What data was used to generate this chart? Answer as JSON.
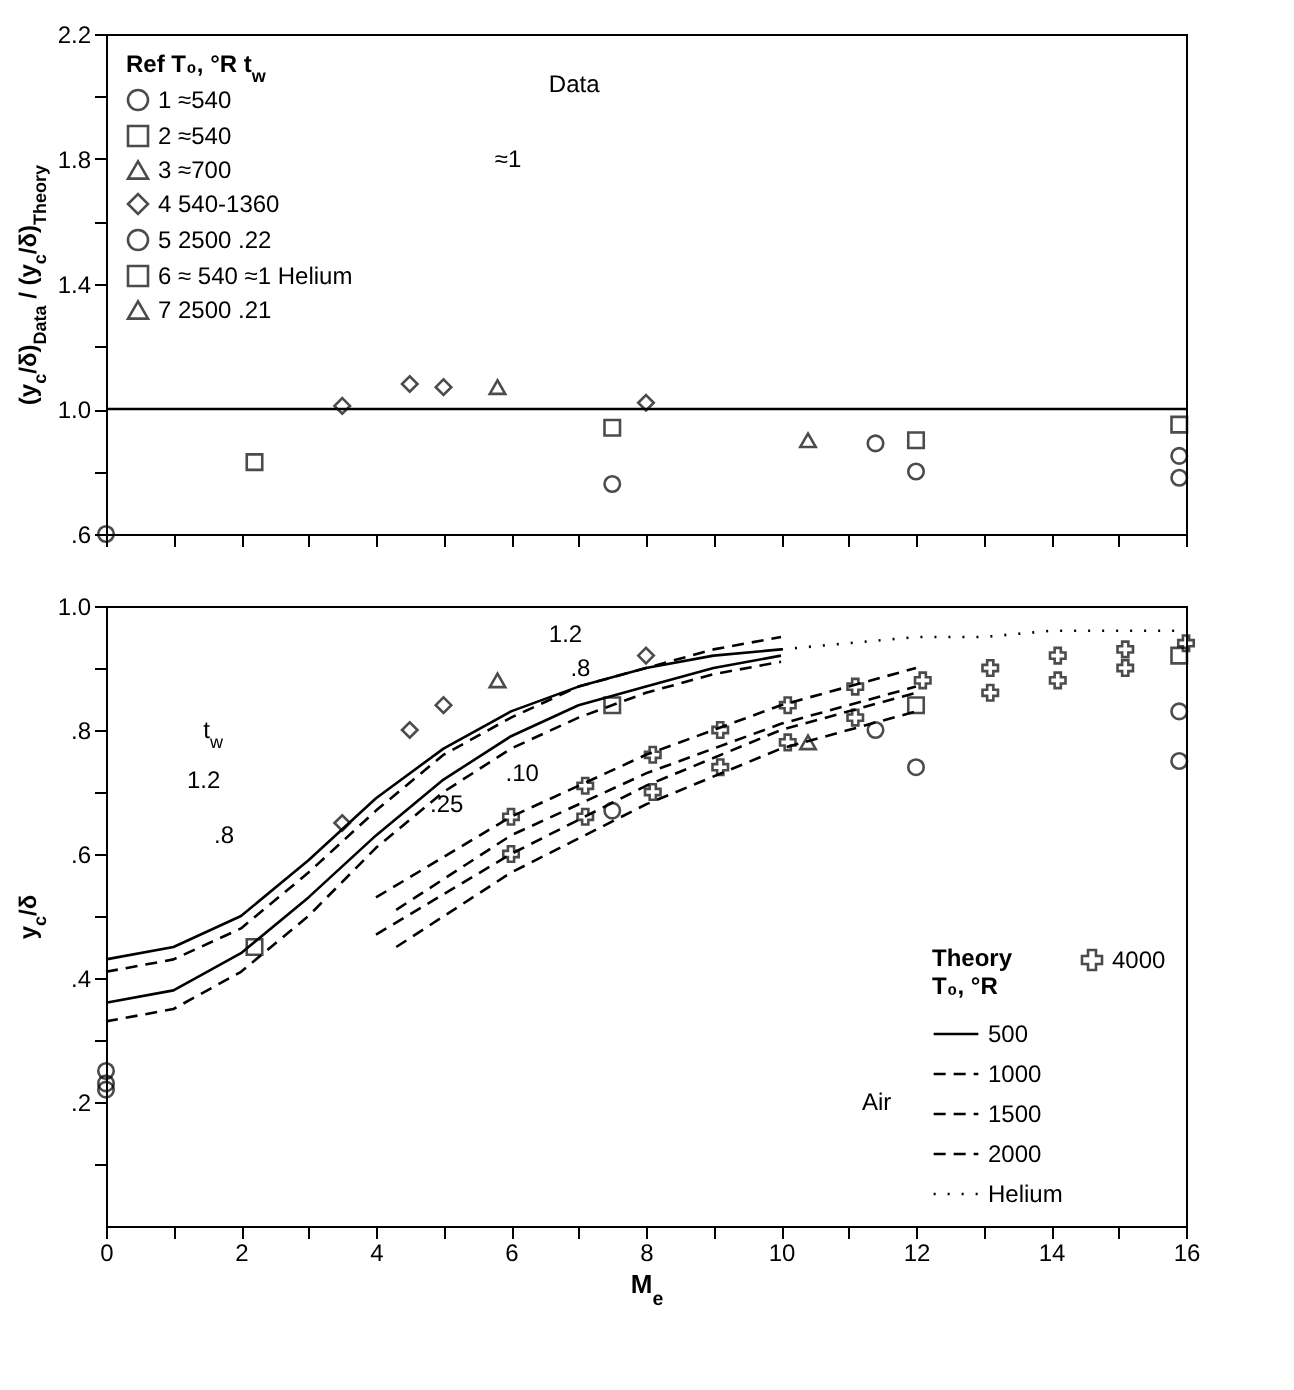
{
  "chart_data": [
    {
      "type": "scatter",
      "ylabel": "(y$_{c}$/δ)$_{Data}$ / (y$_{c}$/δ)$_{Theory}$",
      "legend_title": "Ref   T₀, °R   t$_{w}$",
      "legend": "top left",
      "tick_labels": "y",
      "xlim": [
        0,
        16
      ],
      "xticks": [
        0,
        {
          "value": 1,
          "label": null
        },
        2,
        {
          "value": 3,
          "label": null
        },
        4,
        {
          "value": 5,
          "label": null
        },
        6,
        {
          "value": 7,
          "label": null
        },
        8,
        {
          "value": 9,
          "label": null
        },
        10,
        {
          "value": 11,
          "label": null
        },
        12,
        {
          "value": 13,
          "label": null
        },
        14,
        {
          "value": 15,
          "label": null
        },
        16
      ],
      "ylim": [
        0.6,
        2.2
      ],
      "yticks": [
        {
          "value": 0.6,
          "label": ".6"
        },
        {
          "value": 0.8,
          "label": null
        },
        {
          "value": 1,
          "label": "1.0"
        },
        {
          "value": 1.2,
          "label": null
        },
        1.4,
        {
          "value": 1.6,
          "label": null
        },
        1.8,
        {
          "value": 2,
          "label": null
        },
        2.2
      ],
      "annotations": [
        "Data",
        "≈1"
      ],
      "ref_lines": [
        {
          "axis": "y",
          "value": 1,
          "color": "#000000",
          "line_style": "solid"
        }
      ],
      "series": [
        {
          "name": "1   ≈540",
          "color": "#000000",
          "marker": "circle",
          "x": [
            0
          ],
          "values": [
            0.6
          ]
        },
        {
          "name": "2   ≈540",
          "color": "#000000",
          "marker": "square",
          "x": [
            2.2
          ],
          "values": [
            0.83
          ]
        },
        {
          "name": "3   ≈700",
          "color": "#000000",
          "marker": "triangle",
          "x": [
            5.8
          ],
          "values": [
            1.07
          ]
        },
        {
          "name": "4   540-1360",
          "color": "#000000",
          "marker": "diamond",
          "x": [
            3.5,
            4.5,
            5.0,
            8.0
          ],
          "values": [
            1.01,
            1.08,
            1.07,
            1.02
          ]
        },
        {
          "name": "5   2500   .22",
          "color": "#000000",
          "marker": "circle",
          "x": [
            7.5,
            11.4,
            12.0,
            15.9,
            15.9
          ],
          "values": [
            0.76,
            0.89,
            0.8,
            0.85,
            0.78
          ]
        },
        {
          "name": "6   ≈ 540   ≈1   Helium",
          "color": "#000000",
          "marker": "square",
          "x": [
            7.5,
            12.0,
            15.9
          ],
          "values": [
            0.94,
            0.9,
            0.95
          ]
        },
        {
          "name": "7   2500   .21",
          "color": "#000000",
          "marker": "triangle",
          "x": [
            10.4
          ],
          "values": [
            0.9
          ]
        }
      ]
    },
    {
      "type": "line",
      "xlabel": "M$_{e}$",
      "ylabel": "y$_{c}$/δ",
      "legend_title": "Theory\nT₀, °R",
      "legend": "bottom right",
      "xlim": [
        0,
        16
      ],
      "xticks": [
        0,
        {
          "value": 1,
          "label": null
        },
        2,
        {
          "value": 3,
          "label": null
        },
        4,
        {
          "value": 5,
          "label": null
        },
        6,
        {
          "value": 7,
          "label": null
        },
        8,
        {
          "value": 9,
          "label": null
        },
        10,
        {
          "value": 11,
          "label": null
        },
        12,
        {
          "value": 13,
          "label": null
        },
        14,
        {
          "value": 15,
          "label": null
        },
        16
      ],
      "ylim": [
        0,
        1
      ],
      "yticks": [
        {
          "value": 0.1,
          "label": null
        },
        {
          "value": 0.2,
          "label": ".2"
        },
        {
          "value": 0.3,
          "label": null
        },
        {
          "value": 0.4,
          "label": ".4"
        },
        {
          "value": 0.5,
          "label": null
        },
        {
          "value": 0.6,
          "label": ".6"
        },
        {
          "value": 0.7,
          "label": null
        },
        {
          "value": 0.8,
          "label": ".8"
        },
        {
          "value": 0.9,
          "label": null
        },
        {
          "value": 1,
          "label": "1.0"
        }
      ],
      "annotations": [
        "t$_{w}$",
        "1.2",
        ".8",
        "1.2",
        ".8",
        ".10",
        ".25",
        "Air"
      ],
      "series": [
        {
          "name": "500",
          "line_style": "solid",
          "color": "#000000",
          "x": [
            0,
            1,
            2,
            3,
            4,
            5,
            6,
            7,
            8,
            9,
            10
          ],
          "values": [
            0.43,
            0.45,
            0.5,
            0.59,
            0.69,
            0.77,
            0.83,
            0.87,
            0.9,
            0.92,
            0.93
          ]
        },
        {
          "name": "1000",
          "line_style": "dashed",
          "color": "#000000",
          "x": [
            0,
            1,
            2,
            3,
            4,
            5,
            6,
            7,
            8,
            9,
            10
          ],
          "values": [
            0.41,
            0.43,
            0.48,
            0.57,
            0.67,
            0.76,
            0.82,
            0.87,
            0.9,
            0.93,
            0.95
          ]
        },
        {
          "line_style": "solid",
          "color": "#000000",
          "x": [
            0,
            1,
            2,
            3,
            4,
            5,
            6,
            7,
            8,
            9,
            10
          ],
          "values": [
            0.36,
            0.38,
            0.44,
            0.53,
            0.63,
            0.72,
            0.79,
            0.84,
            0.87,
            0.9,
            0.92
          ]
        },
        {
          "line_style": "dashed",
          "color": "#000000",
          "x": [
            0,
            1,
            2,
            3,
            4,
            5,
            6,
            7,
            8,
            9,
            10
          ],
          "values": [
            0.33,
            0.35,
            0.41,
            0.5,
            0.61,
            0.7,
            0.77,
            0.82,
            0.86,
            0.89,
            0.91
          ]
        },
        {
          "name": "1500",
          "line_style": "dashed",
          "color": "#000000",
          "x": [
            4,
            6,
            8,
            10,
            12
          ],
          "values": [
            0.53,
            0.66,
            0.76,
            0.84,
            0.9
          ]
        },
        {
          "name": "2000",
          "line_style": "dashed",
          "color": "#000000",
          "x": [
            4.3,
            6,
            8,
            10,
            12
          ],
          "values": [
            0.51,
            0.63,
            0.73,
            0.81,
            0.87
          ]
        },
        {
          "line_style": "dashed",
          "color": "#000000",
          "x": [
            4,
            6,
            8,
            10,
            12
          ],
          "values": [
            0.47,
            0.6,
            0.71,
            0.8,
            0.86
          ]
        },
        {
          "line_style": "dashed",
          "color": "#000000",
          "x": [
            4.3,
            6,
            8,
            10,
            12
          ],
          "values": [
            0.45,
            0.57,
            0.68,
            0.77,
            0.83
          ]
        },
        {
          "name": "4000",
          "type": "scatter",
          "marker": "cross",
          "color": "#000000",
          "x": [
            6,
            6,
            7.1,
            7.1,
            8.1,
            8.1,
            9.1,
            9.1,
            10.1,
            10.1,
            11.1,
            11.1,
            12.1,
            13.1,
            13.1,
            14.1,
            14.1,
            15.1,
            15.1,
            16
          ],
          "values": [
            0.66,
            0.6,
            0.71,
            0.66,
            0.76,
            0.7,
            0.8,
            0.74,
            0.84,
            0.78,
            0.87,
            0.82,
            0.88,
            0.9,
            0.86,
            0.92,
            0.88,
            0.93,
            0.9,
            0.94
          ]
        },
        {
          "name": "Helium",
          "line_style": "dotted",
          "color": "#000000",
          "x": [
            10,
            11,
            12,
            13,
            14,
            15,
            16
          ],
          "values": [
            0.93,
            0.94,
            0.95,
            0.95,
            0.96,
            0.96,
            0.96
          ]
        },
        {
          "type": "scatter",
          "marker": "circle",
          "color": "#000000",
          "x": [
            0,
            0,
            0
          ],
          "values": [
            0.25,
            0.23,
            0.22
          ]
        },
        {
          "type": "scatter",
          "marker": "square",
          "color": "#000000",
          "x": [
            2.2
          ],
          "values": [
            0.45
          ]
        },
        {
          "type": "scatter",
          "marker": "triangle",
          "color": "#000000",
          "x": [
            5.8
          ],
          "values": [
            0.88
          ]
        },
        {
          "type": "scatter",
          "marker": "diamond",
          "color": "#000000",
          "x": [
            3.5,
            4.5,
            5.0,
            8.0
          ],
          "values": [
            0.65,
            0.8,
            0.84,
            0.92
          ]
        },
        {
          "type": "scatter",
          "marker": "circle",
          "color": "#000000",
          "x": [
            7.5,
            11.4,
            12.0,
            15.9,
            15.9
          ],
          "values": [
            0.67,
            0.8,
            0.74,
            0.83,
            0.75
          ]
        },
        {
          "type": "scatter",
          "marker": "square",
          "color": "#000000",
          "x": [
            7.5,
            12.0,
            15.9
          ],
          "values": [
            0.84,
            0.84,
            0.92
          ]
        },
        {
          "type": "scatter",
          "marker": "triangle",
          "color": "#000000",
          "x": [
            10.4
          ],
          "values": [
            0.78
          ]
        }
      ]
    }
  ]
}
